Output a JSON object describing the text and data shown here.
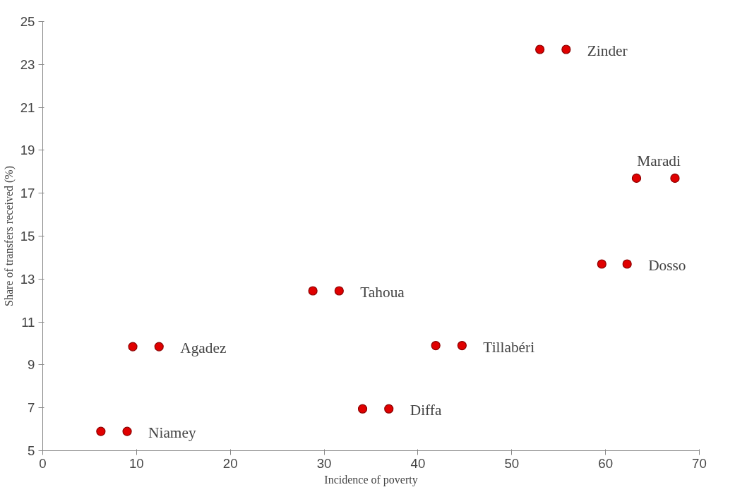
{
  "chart_data": {
    "type": "scatter",
    "xlabel": "Incidence of poverty",
    "ylabel": "Share of transfers received (%)",
    "series": [
      {
        "color": "#e00000",
        "x": [
          6.2,
          9.0,
          9.6,
          12.4,
          28.8,
          31.6,
          34.1,
          36.9,
          41.9,
          44.7,
          53.0,
          55.8,
          63.3,
          67.4,
          59.6,
          62.3
        ],
        "values": [
          5.9,
          5.9,
          9.85,
          9.85,
          12.45,
          12.45,
          6.95,
          6.95,
          9.9,
          9.9,
          23.7,
          23.7,
          17.7,
          17.7,
          13.7,
          13.7
        ]
      }
    ],
    "annotations": [
      {
        "text": "Niamey",
        "x": 9.0,
        "y": 5.9
      },
      {
        "text": "Agadez",
        "x": 12.4,
        "y": 9.85
      },
      {
        "text": "Tahoua",
        "x": 31.6,
        "y": 12.45
      },
      {
        "text": "Diffa",
        "x": 36.9,
        "y": 6.95
      },
      {
        "text": "Tillabéri",
        "x": 44.7,
        "y": 9.9
      },
      {
        "text": "Zinder",
        "x": 55.8,
        "y": 23.7
      },
      {
        "text": "Maradi",
        "x": 67.4,
        "y": 17.7
      },
      {
        "text": "Dosso",
        "x": 62.3,
        "y": 13.7
      }
    ],
    "xlim": [
      0,
      70
    ],
    "ylim": [
      5,
      25
    ],
    "xticks": [
      0,
      10,
      20,
      30,
      40,
      50,
      60,
      70
    ],
    "yticks": [
      5,
      7,
      9,
      11,
      13,
      15,
      17,
      19,
      21,
      23,
      25
    ],
    "marker": "circle",
    "grid": false
  }
}
